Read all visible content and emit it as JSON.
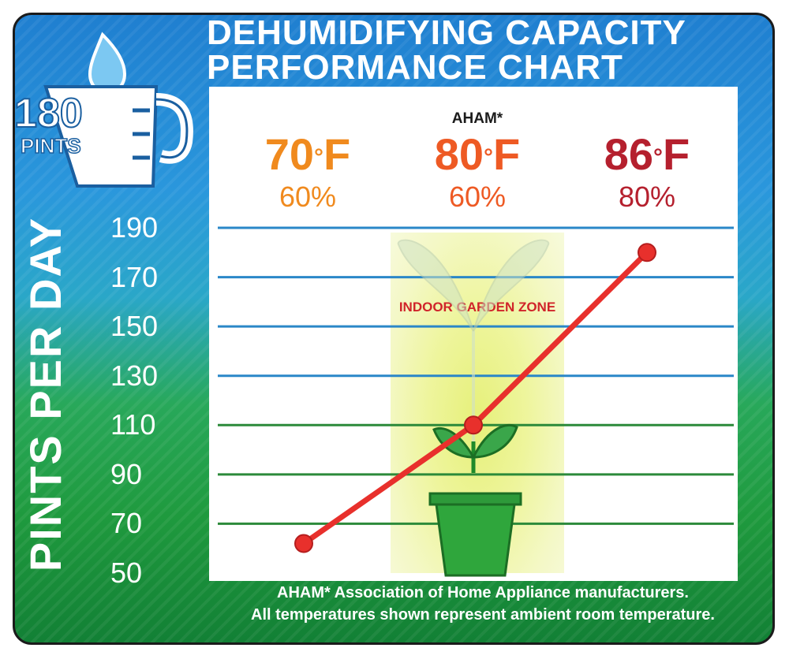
{
  "title_line1": "DEHUMIDIFYING CAPACITY",
  "title_line2": "PERFORMANCE CHART",
  "badge": {
    "number": "180",
    "unit": "PINTS"
  },
  "aham_label": "AHAM*",
  "zone_label": "INDOOR GARDEN ZONE",
  "footer_line1": "AHAM* Association of Home Appliance manufacturers.",
  "footer_line2": "All temperatures shown represent ambient room temperature.",
  "colors": {
    "c70": "#f08a1e",
    "c80": "#ee5a24",
    "c86": "#b5202e",
    "line": "#e8302c",
    "grid": "#2a87c8",
    "grid_green": "#2c8a3a"
  },
  "chart_data": {
    "type": "line",
    "title": "DEHUMIDIFYING CAPACITY PERFORMANCE CHART",
    "ylabel": "PINTS PER DAY",
    "ylim": [
      50,
      190
    ],
    "yticks": [
      "190",
      "170",
      "150",
      "130",
      "110",
      "90",
      "70",
      "50"
    ],
    "categories": [
      {
        "temp": "70",
        "unit": "F",
        "humidity": "60%"
      },
      {
        "temp": "80",
        "unit": "F",
        "humidity": "60%"
      },
      {
        "temp": "86",
        "unit": "F",
        "humidity": "80%"
      }
    ],
    "values": [
      62,
      110,
      180
    ],
    "grid": true
  }
}
